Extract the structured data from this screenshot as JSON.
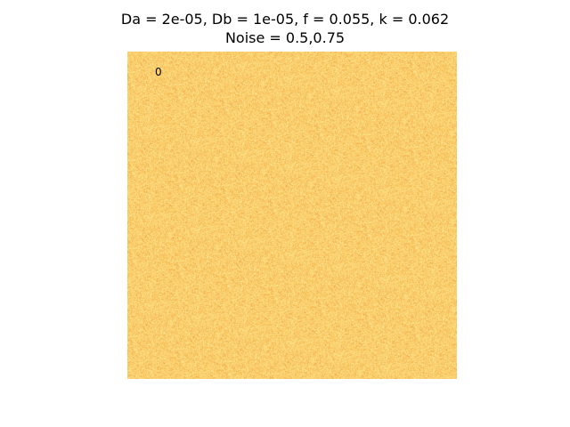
{
  "figure": {
    "title_line_1": "Da = 2e-05, Db = 1e-05, f = 0.055, k = 0.062",
    "title_line_2": "Noise = 0.5,0.75",
    "frame_label": "0"
  },
  "image": {
    "content": "reaction-diffusion noise field",
    "colors": {
      "light": "#fde99a",
      "mid": "#fbd16c",
      "dark": "#f1a545",
      "background": "#ffffff"
    }
  }
}
